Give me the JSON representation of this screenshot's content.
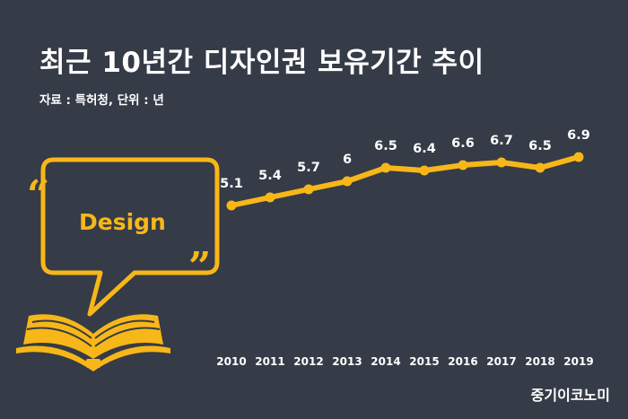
{
  "title": "최근 10년간 디자인권 보유기간 추이",
  "subtitle": "자료 : 특허청, 단위 : 년",
  "watermark": "중기이코노미",
  "illustration": {
    "text": "Design",
    "icon": "speech-bubble-book-illustration"
  },
  "colors": {
    "background": "#353b47",
    "accent": "#f7b718",
    "text": "#ffffff"
  },
  "chart_data": {
    "type": "line",
    "categories": [
      "2010",
      "2011",
      "2012",
      "2013",
      "2014",
      "2015",
      "2016",
      "2017",
      "2018",
      "2019"
    ],
    "values": [
      5.1,
      5.4,
      5.7,
      6,
      6.5,
      6.4,
      6.6,
      6.7,
      6.5,
      6.9
    ],
    "value_labels": [
      "5.1",
      "5.4",
      "5.7",
      "6",
      "6.5",
      "6.4",
      "6.6",
      "6.7",
      "6.5",
      "6.9"
    ],
    "title": "최근 10년간 디자인권 보유기간 추이",
    "xlabel": "",
    "ylabel": "",
    "grid": false,
    "legend": "none"
  }
}
